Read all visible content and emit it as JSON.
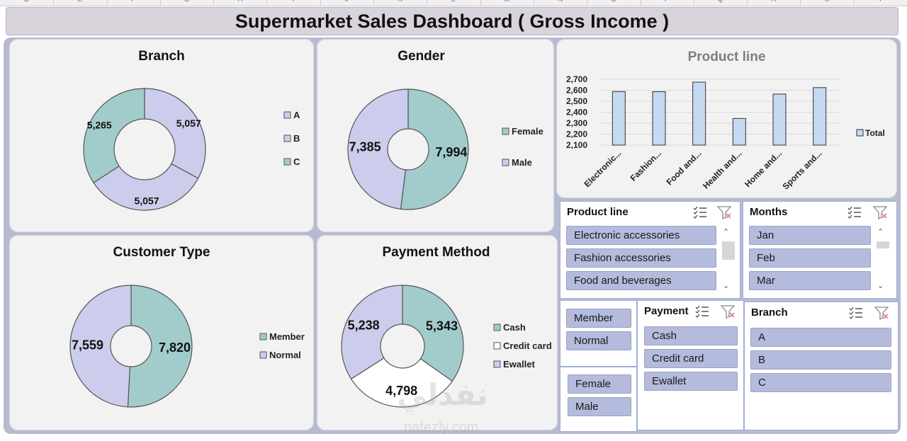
{
  "spreadsheet": {
    "column_headers": [
      "D",
      "E",
      "F",
      "G",
      "H",
      "I",
      "J",
      "K",
      "L",
      "M",
      "N",
      "O",
      "P",
      "Q",
      "R",
      "S",
      "T"
    ]
  },
  "dashboard": {
    "title": "Supermarket Sales Dashboard ( Gross Income )"
  },
  "panels": {
    "branch": {
      "title": "Branch"
    },
    "gender": {
      "title": "Gender"
    },
    "product_line": {
      "title": "Product line"
    },
    "customer_type": {
      "title": "Customer Type"
    },
    "payment_method": {
      "title": "Payment Method"
    }
  },
  "chart_data": [
    {
      "type": "pie",
      "title": "Branch",
      "style": "doughnut",
      "categories": [
        "A",
        "B",
        "C"
      ],
      "values": [
        5057,
        5057,
        5265
      ],
      "labels": [
        "5,057",
        "5,057",
        "5,265"
      ],
      "colors": [
        "#ccccec",
        "#ccccec",
        "#a2cccc"
      ],
      "legend": "right"
    },
    {
      "type": "pie",
      "title": "Gender",
      "style": "doughnut",
      "categories": [
        "Female",
        "Male"
      ],
      "values": [
        7994,
        7385
      ],
      "labels": [
        "7,994",
        "7,385"
      ],
      "colors": [
        "#a2cccc",
        "#ccccec"
      ],
      "legend": "right"
    },
    {
      "type": "bar",
      "title": "Product line",
      "categories": [
        "Electronic...",
        "Fashion...",
        "Food and...",
        "Health and...",
        "Home and...",
        "Sports and..."
      ],
      "series": [
        {
          "name": "Total",
          "values": [
            2588,
            2587,
            2674,
            2343,
            2565,
            2624
          ]
        }
      ],
      "ylim": [
        2100,
        2700
      ],
      "yticks": [
        "2,100",
        "2,200",
        "2,300",
        "2,400",
        "2,500",
        "2,600",
        "2,700"
      ],
      "grid": true,
      "legend": "right",
      "bar_color": "#c5d9f1"
    },
    {
      "type": "pie",
      "title": "Customer Type",
      "style": "doughnut",
      "categories": [
        "Member",
        "Normal"
      ],
      "values": [
        7820,
        7559
      ],
      "labels": [
        "7,820",
        "7,559"
      ],
      "colors": [
        "#a2cccc",
        "#ccccec"
      ],
      "legend": "right"
    },
    {
      "type": "pie",
      "title": "Payment Method",
      "style": "doughnut",
      "categories": [
        "Cash",
        "Credit card",
        "Ewallet"
      ],
      "values": [
        5343,
        4798,
        5238
      ],
      "labels": [
        "5,343",
        "4,798",
        "5,238"
      ],
      "colors": [
        "#a2cccc",
        "#ffffff",
        "#ccccec"
      ],
      "legend": "right"
    }
  ],
  "slicers": {
    "product_line": {
      "header": "Product line",
      "items": [
        "Electronic accessories",
        "Fashion accessories",
        "Food and beverages"
      ]
    },
    "months": {
      "header": "Months",
      "items": [
        "Jan",
        "Feb",
        "Mar"
      ]
    },
    "customer_type": {
      "items": [
        "Member",
        "Normal"
      ]
    },
    "gender": {
      "items": [
        "Female",
        "Male"
      ]
    },
    "payment": {
      "header": "Payment",
      "items": [
        "Cash",
        "Credit card",
        "Ewallet"
      ]
    },
    "branch": {
      "header": "Branch",
      "items": [
        "A",
        "B",
        "C"
      ]
    }
  },
  "watermark": {
    "arabic": "نفذلي",
    "latin": "nafezly.com"
  }
}
